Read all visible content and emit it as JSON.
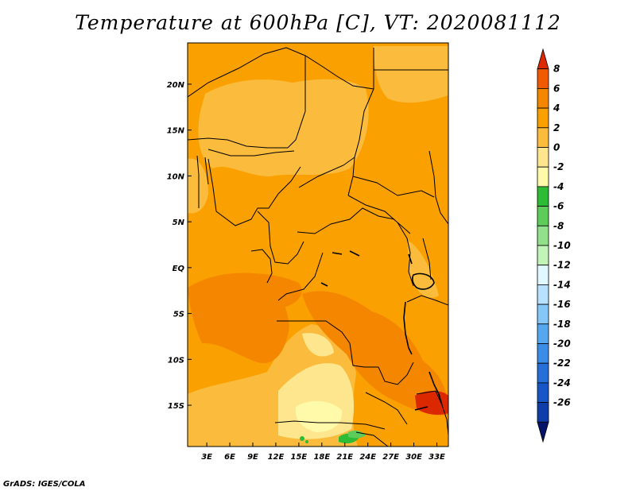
{
  "title": "Temperature at 600hPa [C], VT: 2020081112",
  "footer": "GrADS: IGES/COLA",
  "map": {
    "region": "Central and Southern Africa",
    "lat_range": [
      -19.5,
      24.5
    ],
    "lon_range": [
      0.5,
      34.5
    ],
    "lat_ticks": [
      {
        "value": 20,
        "label": "20N"
      },
      {
        "value": 15,
        "label": "15N"
      },
      {
        "value": 10,
        "label": "10N"
      },
      {
        "value": 5,
        "label": "5N"
      },
      {
        "value": 0,
        "label": "EQ"
      },
      {
        "value": -5,
        "label": "5S"
      },
      {
        "value": -10,
        "label": "10S"
      },
      {
        "value": -15,
        "label": "15S"
      }
    ],
    "lon_ticks": [
      {
        "value": 3,
        "label": "3E"
      },
      {
        "value": 6,
        "label": "6E"
      },
      {
        "value": 9,
        "label": "9E"
      },
      {
        "value": 12,
        "label": "12E"
      },
      {
        "value": 15,
        "label": "15E"
      },
      {
        "value": 18,
        "label": "18E"
      },
      {
        "value": 21,
        "label": "21E"
      },
      {
        "value": 24,
        "label": "24E"
      },
      {
        "value": 27,
        "label": "27E"
      },
      {
        "value": 30,
        "label": "30E"
      },
      {
        "value": 33,
        "label": "33E"
      }
    ]
  },
  "colorbar": {
    "levels": [
      "8",
      "6",
      "4",
      "2",
      "0",
      "-2",
      "-4",
      "-6",
      "-8",
      "-10",
      "-12",
      "-14",
      "-16",
      "-18",
      "-20",
      "-22",
      "-24",
      "-26"
    ],
    "colors": [
      "#dc2800",
      "#f05a00",
      "#f58700",
      "#faa000",
      "#fbbb3c",
      "#fee68e",
      "#fffaaa",
      "#2ebb36",
      "#5ecc5a",
      "#92df8c",
      "#c2f3b8",
      "#e0f8ff",
      "#b8e0ff",
      "#86c7f8",
      "#56a8ee",
      "#3a8ce6",
      "#266fd8",
      "#1855c6",
      "#0e3ca8",
      "#051468"
    ]
  }
}
